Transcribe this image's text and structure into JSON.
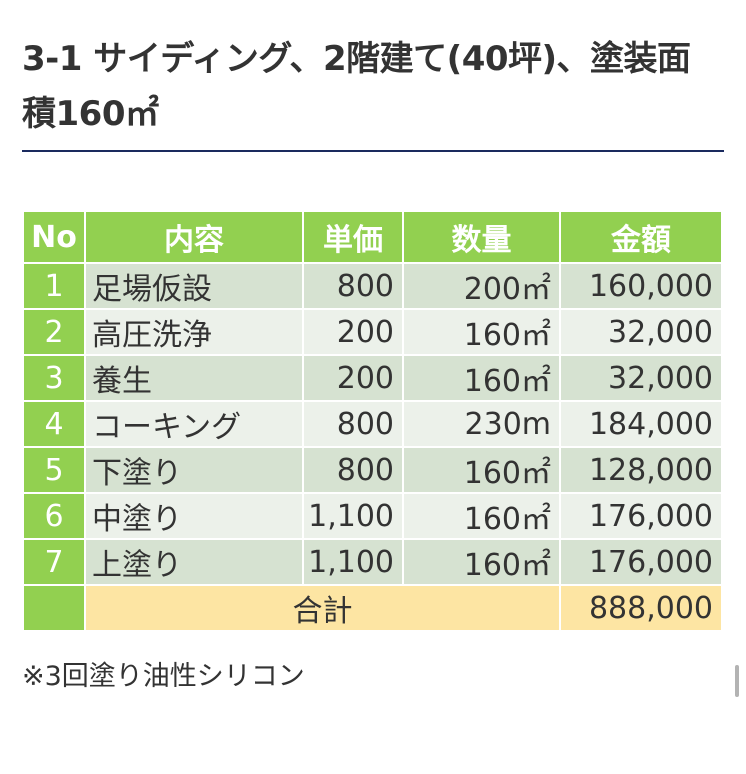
{
  "heading": "3-1 サイディング、2階建て(40坪)、塗装面積160㎡",
  "table": {
    "headers": {
      "no": "No",
      "content": "内容",
      "unit_price": "単価",
      "quantity": "数量",
      "amount": "金額"
    },
    "rows": [
      {
        "no": "1",
        "item": "足場仮設",
        "price": "800",
        "qty": "200㎡",
        "amount": "160,000"
      },
      {
        "no": "2",
        "item": "高圧洗浄",
        "price": "200",
        "qty": "160㎡",
        "amount": "32,000"
      },
      {
        "no": "3",
        "item": "養生",
        "price": "200",
        "qty": "160㎡",
        "amount": "32,000"
      },
      {
        "no": "4",
        "item": "コーキング",
        "price": "800",
        "qty": "230m",
        "amount": "184,000"
      },
      {
        "no": "5",
        "item": "下塗り",
        "price": "800",
        "qty": "160㎡",
        "amount": "128,000"
      },
      {
        "no": "6",
        "item": "中塗り",
        "price": "1,100",
        "qty": "160㎡",
        "amount": "176,000"
      },
      {
        "no": "7",
        "item": "上塗り",
        "price": "1,100",
        "qty": "160㎡",
        "amount": "176,000"
      }
    ],
    "total": {
      "label": "合計",
      "amount": "888,000"
    }
  },
  "note": "※3回塗り油性シリコン",
  "colors": {
    "header_green": "#92d050",
    "row_dark": "#d6e2d1",
    "row_light": "#ecf1ea",
    "total_yellow": "#fde5a3",
    "rule_navy": "#1a2a5e"
  }
}
